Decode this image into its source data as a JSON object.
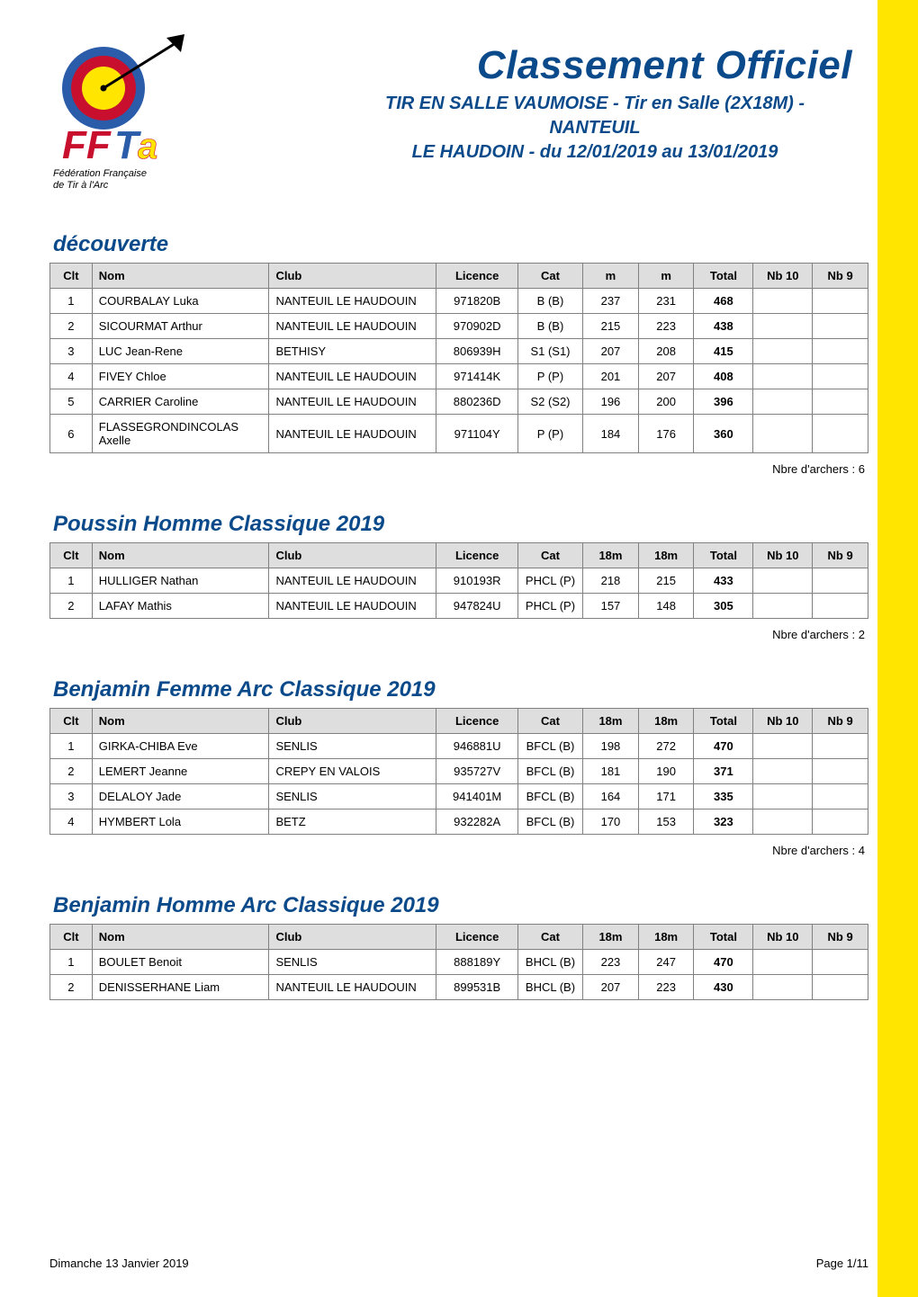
{
  "page_title": "Classement Officiel",
  "event_line1": "TIR EN SALLE VAUMOISE - Tir en Salle (2X18M) - NANTEUIL",
  "event_line2": "LE HAUDOIN - du 12/01/2019 au 13/01/2019",
  "logo": {
    "caption_l1": "Fédération Française",
    "caption_l2": "de Tir à l'Arc"
  },
  "headers": {
    "clt": "Clt",
    "nom": "Nom",
    "club": "Club",
    "licence": "Licence",
    "cat": "Cat",
    "total": "Total",
    "nb10": "Nb 10",
    "nb9": "Nb 9"
  },
  "footer": {
    "left": "Dimanche 13 Janvier 2019",
    "right": "Page 1/11"
  },
  "nbre_prefix": "Nbre d'archers : ",
  "sections": [
    {
      "title": "découverte",
      "score_cols": [
        "m",
        "m"
      ],
      "rows": [
        {
          "clt": "1",
          "nom": "COURBALAY Luka",
          "club": "NANTEUIL LE HAUDOUIN",
          "lic": "971820B",
          "cat": "B (B)",
          "s1": "237",
          "s2": "231",
          "tot": "468",
          "nb10": "",
          "nb9": ""
        },
        {
          "clt": "2",
          "nom": "SICOURMAT Arthur",
          "club": "NANTEUIL LE HAUDOUIN",
          "lic": "970902D",
          "cat": "B (B)",
          "s1": "215",
          "s2": "223",
          "tot": "438",
          "nb10": "",
          "nb9": ""
        },
        {
          "clt": "3",
          "nom": "LUC Jean-Rene",
          "club": "BETHISY",
          "lic": "806939H",
          "cat": "S1 (S1)",
          "s1": "207",
          "s2": "208",
          "tot": "415",
          "nb10": "",
          "nb9": ""
        },
        {
          "clt": "4",
          "nom": "FIVEY Chloe",
          "club": "NANTEUIL LE HAUDOUIN",
          "lic": "971414K",
          "cat": "P (P)",
          "s1": "201",
          "s2": "207",
          "tot": "408",
          "nb10": "",
          "nb9": ""
        },
        {
          "clt": "5",
          "nom": "CARRIER Caroline",
          "club": "NANTEUIL LE HAUDOUIN",
          "lic": "880236D",
          "cat": "S2 (S2)",
          "s1": "196",
          "s2": "200",
          "tot": "396",
          "nb10": "",
          "nb9": ""
        },
        {
          "clt": "6",
          "nom": "FLASSEGRONDINCOLAS Axelle",
          "club": "NANTEUIL LE HAUDOUIN",
          "lic": "971104Y",
          "cat": "P (P)",
          "s1": "184",
          "s2": "176",
          "tot": "360",
          "nb10": "",
          "nb9": ""
        }
      ],
      "nbre": "6"
    },
    {
      "title": "Poussin Homme Classique 2019",
      "score_cols": [
        "18m",
        "18m"
      ],
      "rows": [
        {
          "clt": "1",
          "nom": "HULLIGER Nathan",
          "club": "NANTEUIL LE HAUDOUIN",
          "lic": "910193R",
          "cat": "PHCL (P)",
          "s1": "218",
          "s2": "215",
          "tot": "433",
          "nb10": "",
          "nb9": ""
        },
        {
          "clt": "2",
          "nom": "LAFAY Mathis",
          "club": "NANTEUIL LE HAUDOUIN",
          "lic": "947824U",
          "cat": "PHCL (P)",
          "s1": "157",
          "s2": "148",
          "tot": "305",
          "nb10": "",
          "nb9": ""
        }
      ],
      "nbre": "2"
    },
    {
      "title": "Benjamin Femme Arc Classique 2019",
      "score_cols": [
        "18m",
        "18m"
      ],
      "rows": [
        {
          "clt": "1",
          "nom": "GIRKA-CHIBA Eve",
          "club": "SENLIS",
          "lic": "946881U",
          "cat": "BFCL (B)",
          "s1": "198",
          "s2": "272",
          "tot": "470",
          "nb10": "",
          "nb9": ""
        },
        {
          "clt": "2",
          "nom": "LEMERT Jeanne",
          "club": "CREPY EN VALOIS",
          "lic": "935727V",
          "cat": "BFCL (B)",
          "s1": "181",
          "s2": "190",
          "tot": "371",
          "nb10": "",
          "nb9": ""
        },
        {
          "clt": "3",
          "nom": "DELALOY Jade",
          "club": "SENLIS",
          "lic": "941401M",
          "cat": "BFCL (B)",
          "s1": "164",
          "s2": "171",
          "tot": "335",
          "nb10": "",
          "nb9": ""
        },
        {
          "clt": "4",
          "nom": "HYMBERT Lola",
          "club": "BETZ",
          "lic": "932282A",
          "cat": "BFCL (B)",
          "s1": "170",
          "s2": "153",
          "tot": "323",
          "nb10": "",
          "nb9": ""
        }
      ],
      "nbre": "4"
    },
    {
      "title": "Benjamin Homme Arc Classique 2019",
      "score_cols": [
        "18m",
        "18m"
      ],
      "rows": [
        {
          "clt": "1",
          "nom": "BOULET Benoit",
          "club": "SENLIS",
          "lic": "888189Y",
          "cat": "BHCL (B)",
          "s1": "223",
          "s2": "247",
          "tot": "470",
          "nb10": "",
          "nb9": ""
        },
        {
          "clt": "2",
          "nom": "DENISSERHANE Liam",
          "club": "NANTEUIL LE HAUDOUIN",
          "lic": "899531B",
          "cat": "BHCL (B)",
          "s1": "207",
          "s2": "223",
          "tot": "430",
          "nb10": "",
          "nb9": ""
        }
      ],
      "nbre": null
    }
  ],
  "styling": {
    "page_bg": "#ffffff",
    "accent_yellow": "#ffe500",
    "title_color": "#0b4a8a",
    "section_color": "#0b4a8a",
    "table_header_bg": "#dedede",
    "border_color": "#808080",
    "body_font": "Arial, Helvetica, sans-serif",
    "main_title_fontsize": 44,
    "section_title_fontsize": 24,
    "subtitle_fontsize": 20,
    "table_fontsize": 13,
    "logo_red": "#c8102e",
    "logo_yellow": "#ffe500",
    "logo_blue": "#2a5caa"
  }
}
